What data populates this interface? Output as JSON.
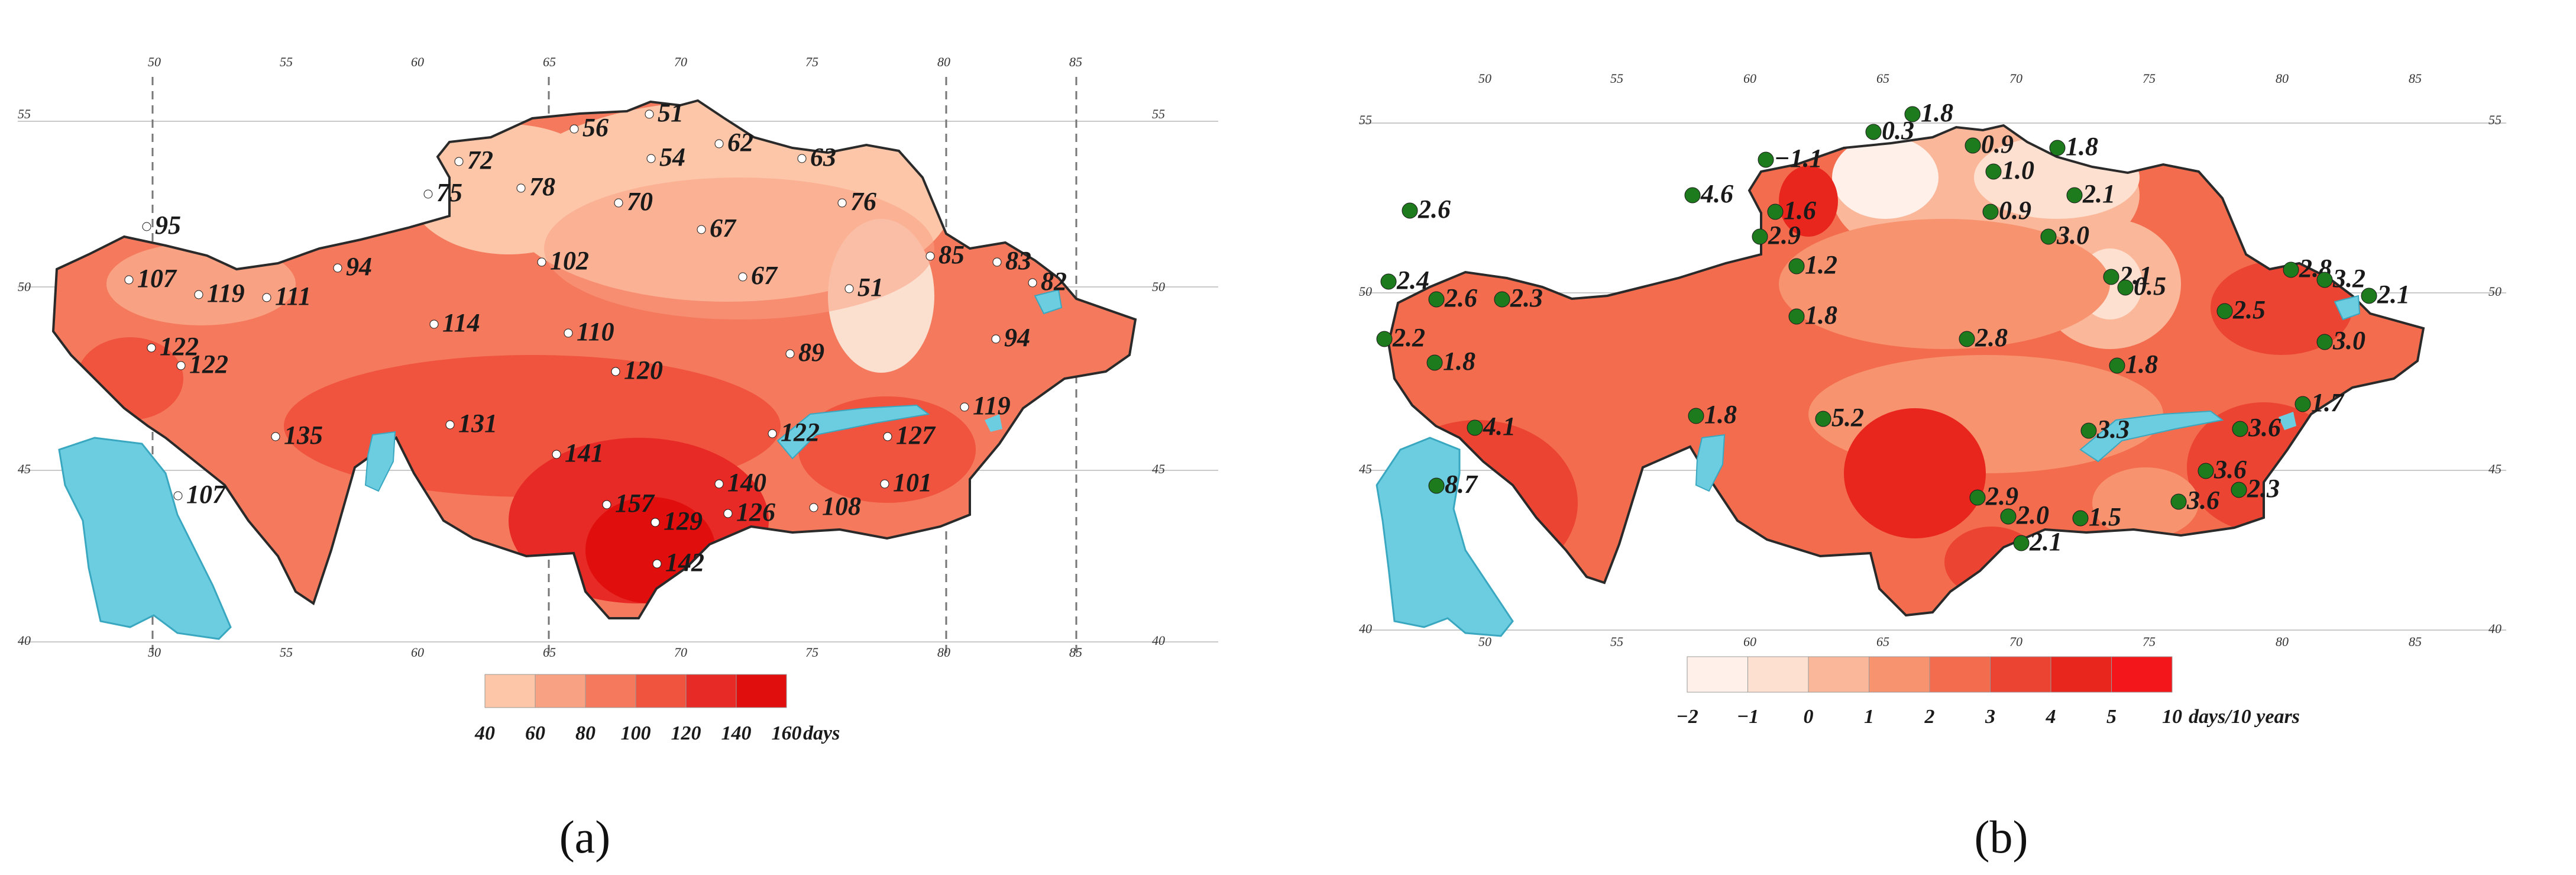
{
  "panels": [
    {
      "label": "(a)",
      "tick_top": [
        "50",
        "55",
        "60",
        "65",
        "70",
        "75",
        "80",
        "85"
      ],
      "tick_bottom": [
        "50",
        "55",
        "60",
        "65",
        "70",
        "75",
        "80",
        "85"
      ],
      "tick_left": [
        "55",
        "50",
        "45",
        "40"
      ],
      "tick_right": [
        "55",
        "50",
        "45",
        "40"
      ],
      "colors": {
        "scale": [
          "#fdc6a8",
          "#f9a183",
          "#f5795c",
          "#f0533e",
          "#e72a25",
          "#e00e0d"
        ],
        "water": "#6ccde0",
        "boundary": "#2a2a2a",
        "station_marker": "#ffffff"
      },
      "legend": {
        "ticks": [
          "40",
          "60",
          "80",
          "100",
          "120",
          "140",
          "160"
        ],
        "unit": "days"
      },
      "stations": [
        "95",
        "107",
        "119",
        "111",
        "94",
        "72",
        "75",
        "78",
        "56",
        "51",
        "54",
        "62",
        "63",
        "70",
        "67",
        "76",
        "67",
        "102",
        "114",
        "110",
        "120",
        "89",
        "51",
        "85",
        "83",
        "82",
        "94",
        "122",
        "122",
        "135",
        "131",
        "141",
        "157",
        "129",
        "142",
        "140",
        "126",
        "108",
        "122",
        "127",
        "101",
        "119",
        "107"
      ]
    },
    {
      "label": "(b)",
      "tick_top": [
        "50",
        "55",
        "60",
        "65",
        "70",
        "75",
        "80",
        "85"
      ],
      "tick_bottom": [
        "50",
        "55",
        "60",
        "65",
        "70",
        "75",
        "80",
        "85"
      ],
      "tick_left": [
        "55",
        "50",
        "45",
        "40"
      ],
      "tick_right": [
        "55",
        "50",
        "45",
        "40"
      ],
      "colors": {
        "scale": [
          "#fff1ea",
          "#fde0d0",
          "#fbb79a",
          "#f7936f",
          "#f26c4d",
          "#ec4432",
          "#e8261e",
          "#f3171b"
        ],
        "water": "#6ccde0",
        "boundary": "#2a2a2a",
        "station_marker": "#1d7a1d"
      },
      "legend": {
        "ticks": [
          "−2",
          "−1",
          "0",
          "1",
          "2",
          "3",
          "4",
          "5",
          "10"
        ],
        "unit": "days/10 years"
      },
      "stations": [
        "2.6",
        "2.9",
        "2.4",
        "2.6",
        "2.3",
        "2.2",
        "1.8",
        "4.1",
        "8.7",
        "−1.1",
        "0.3",
        "1.8",
        "0.9",
        "1.8",
        "1.0",
        "4.6",
        "1.6",
        "0.9",
        "3.0",
        "2.1",
        "1.2",
        "2.1",
        "0.5",
        "2.8",
        "3.2",
        "2.1",
        "2.5",
        "3.0",
        "1.8",
        "2.8",
        "1.8",
        "1.7",
        "1.8",
        "5.2",
        "3.3",
        "3.6",
        "3.6",
        "2.3",
        "2.9",
        "2.0",
        "1.5",
        "2.1",
        "3.6"
      ]
    }
  ]
}
